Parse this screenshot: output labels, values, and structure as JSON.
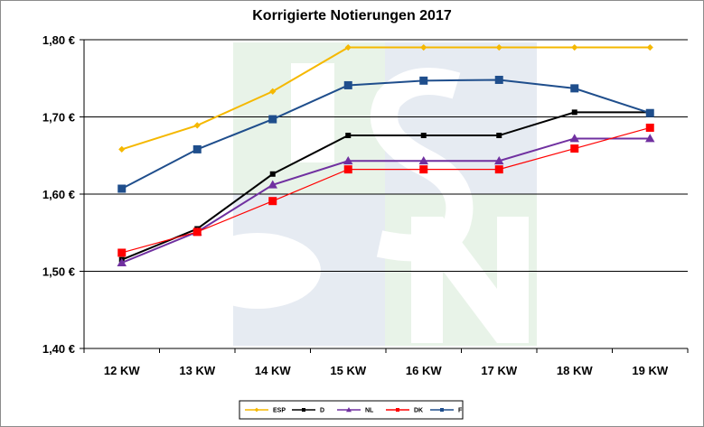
{
  "chart_data": {
    "type": "line",
    "title": "Korrigierte Notierungen 2017",
    "categories": [
      "12 KW",
      "13 KW",
      "14 KW",
      "15 KW",
      "16 KW",
      "17 KW",
      "18 KW",
      "19 KW"
    ],
    "ylim": [
      1.4,
      1.8
    ],
    "yticks": [
      1.4,
      1.5,
      1.6,
      1.7,
      1.8
    ],
    "ytick_labels": [
      "1,40 €",
      "1,50 €",
      "1,60 €",
      "1,70 €",
      "1,80 €"
    ],
    "grid": "horizontal",
    "legend_position": "bottom",
    "series": [
      {
        "name": "ESP",
        "color": "#f5b800",
        "marker": "diamond",
        "values": [
          1.658,
          1.689,
          1.733,
          1.79,
          1.79,
          1.79,
          1.79,
          1.79
        ]
      },
      {
        "name": "D",
        "color": "#000000",
        "marker": "square",
        "values": [
          1.515,
          1.555,
          1.626,
          1.676,
          1.676,
          1.676,
          1.706,
          1.706
        ]
      },
      {
        "name": "NL",
        "color": "#7030a0",
        "marker": "triangle",
        "values": [
          1.511,
          1.551,
          1.612,
          1.643,
          1.643,
          1.643,
          1.672,
          1.672
        ]
      },
      {
        "name": "DK",
        "color": "#ff0000",
        "marker": "square",
        "values": [
          1.524,
          1.551,
          1.591,
          1.632,
          1.632,
          1.632,
          1.659,
          1.686
        ]
      },
      {
        "name": "F",
        "color": "#1f4e8c",
        "marker": "square",
        "values": [
          1.607,
          1.658,
          1.697,
          1.741,
          1.747,
          1.748,
          1.737,
          1.705
        ]
      }
    ]
  }
}
